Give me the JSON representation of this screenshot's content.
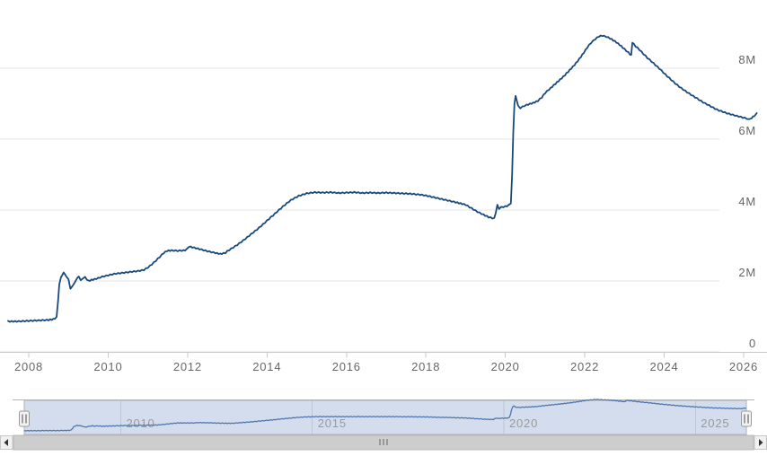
{
  "title": "",
  "colors": {
    "background": "#ffffff",
    "series": "#18497d",
    "navigator_series": "#4f77ad",
    "navigator_mask": "rgba(102,133,194,0.28)",
    "navigator_outline": "#b2b1b6",
    "navigator_grid": "#aab0bc",
    "grid": "#e6e6e6",
    "axis_line": "#c9c9c9",
    "tick": "#c9c9c9",
    "axis_label": "#666666",
    "navigator_label": "#999999",
    "scrollbar_thumb": "#cdcdcd",
    "scrollbar_thumb_border": "#b8b8b8",
    "scrollbar_track": "#f2f2f2",
    "scrollbar_button": "#f1f1f1",
    "scrollbar_button_border": "#c6c6c6",
    "scrollbar_arrow": "#333333",
    "scrollbar_grip": "#666666",
    "handle_fill": "#f2f2f2",
    "handle_border": "#999999",
    "handle_bar": "#4c4c4c"
  },
  "axes": {
    "y_labels": [
      {
        "text": "8M",
        "value": 8
      },
      {
        "text": "6M",
        "value": 6
      },
      {
        "text": "4M",
        "value": 4
      },
      {
        "text": "2M",
        "value": 2
      },
      {
        "text": "0",
        "value": 0
      }
    ],
    "x_labels": [
      {
        "text": "2008",
        "year": 2008
      },
      {
        "text": "2010",
        "year": 2010
      },
      {
        "text": "2012",
        "year": 2012
      },
      {
        "text": "2014",
        "year": 2014
      },
      {
        "text": "2016",
        "year": 2016
      },
      {
        "text": "2018",
        "year": 2018
      },
      {
        "text": "2020",
        "year": 2020
      },
      {
        "text": "2022",
        "year": 2022
      },
      {
        "text": "2024",
        "year": 2024
      },
      {
        "text": "2026",
        "year": 2026
      }
    ]
  },
  "navigator": {
    "labels": [
      {
        "text": "2010",
        "year": 2010
      },
      {
        "text": "2015",
        "year": 2015
      },
      {
        "text": "2020",
        "year": 2020
      },
      {
        "text": "2025",
        "year": 2025
      }
    ],
    "handle_count": 2
  },
  "scrollbar": {
    "left_arrow_icon": "left-triangle",
    "right_arrow_icon": "right-triangle",
    "grip_mark_count": 3
  },
  "chart_data": {
    "type": "line",
    "title": "",
    "xlabel": "",
    "ylabel": "",
    "legend": "none",
    "grid": "horizontal",
    "y_axis_side": "right",
    "y_unit": "M (values are millions, axis shows M suffix)",
    "x_unit": "year (decimal)",
    "x_range": [
      2007.48,
      2026.33
    ],
    "y_ticks_M": [
      0,
      2,
      4,
      6,
      8
    ],
    "navigator_shows_same_series": true,
    "series": [
      {
        "name": "main-series",
        "points_year_valueM": [
          [
            2007.48,
            0.86
          ],
          [
            2007.7,
            0.86
          ],
          [
            2007.9,
            0.87
          ],
          [
            2008.1,
            0.88
          ],
          [
            2008.3,
            0.89
          ],
          [
            2008.5,
            0.9
          ],
          [
            2008.62,
            0.92
          ],
          [
            2008.7,
            0.97
          ],
          [
            2008.74,
            1.45
          ],
          [
            2008.77,
            1.9
          ],
          [
            2008.81,
            2.1
          ],
          [
            2008.85,
            2.18
          ],
          [
            2008.88,
            2.24
          ],
          [
            2008.95,
            2.12
          ],
          [
            2009.0,
            2.04
          ],
          [
            2009.05,
            1.78
          ],
          [
            2009.1,
            1.84
          ],
          [
            2009.16,
            1.96
          ],
          [
            2009.22,
            2.08
          ],
          [
            2009.26,
            2.14
          ],
          [
            2009.31,
            2.02
          ],
          [
            2009.36,
            2.08
          ],
          [
            2009.42,
            2.1
          ],
          [
            2009.5,
            2.0
          ],
          [
            2009.58,
            2.03
          ],
          [
            2009.66,
            2.05
          ],
          [
            2009.75,
            2.08
          ],
          [
            2009.85,
            2.12
          ],
          [
            2010.0,
            2.16
          ],
          [
            2010.15,
            2.2
          ],
          [
            2010.3,
            2.22
          ],
          [
            2010.45,
            2.24
          ],
          [
            2010.6,
            2.26
          ],
          [
            2010.75,
            2.28
          ],
          [
            2010.9,
            2.31
          ],
          [
            2011.0,
            2.38
          ],
          [
            2011.1,
            2.47
          ],
          [
            2011.2,
            2.57
          ],
          [
            2011.3,
            2.68
          ],
          [
            2011.4,
            2.79
          ],
          [
            2011.48,
            2.85
          ],
          [
            2011.6,
            2.86
          ],
          [
            2011.75,
            2.85
          ],
          [
            2011.9,
            2.86
          ],
          [
            2011.97,
            2.88
          ],
          [
            2012.03,
            2.97
          ],
          [
            2012.12,
            2.95
          ],
          [
            2012.3,
            2.9
          ],
          [
            2012.5,
            2.84
          ],
          [
            2012.7,
            2.79
          ],
          [
            2012.82,
            2.76
          ],
          [
            2012.95,
            2.79
          ],
          [
            2013.0,
            2.84
          ],
          [
            2013.2,
            2.98
          ],
          [
            2013.4,
            3.14
          ],
          [
            2013.6,
            3.32
          ],
          [
            2013.8,
            3.5
          ],
          [
            2014.0,
            3.7
          ],
          [
            2014.2,
            3.9
          ],
          [
            2014.4,
            4.1
          ],
          [
            2014.6,
            4.28
          ],
          [
            2014.8,
            4.4
          ],
          [
            2015.0,
            4.47
          ],
          [
            2015.2,
            4.5
          ],
          [
            2015.4,
            4.49
          ],
          [
            2015.6,
            4.5
          ],
          [
            2015.8,
            4.48
          ],
          [
            2016.0,
            4.49
          ],
          [
            2016.2,
            4.5
          ],
          [
            2016.4,
            4.48
          ],
          [
            2016.6,
            4.49
          ],
          [
            2016.8,
            4.48
          ],
          [
            2017.0,
            4.49
          ],
          [
            2017.2,
            4.48
          ],
          [
            2017.4,
            4.47
          ],
          [
            2017.6,
            4.46
          ],
          [
            2017.8,
            4.44
          ],
          [
            2017.95,
            4.42
          ],
          [
            2018.15,
            4.37
          ],
          [
            2018.35,
            4.32
          ],
          [
            2018.55,
            4.27
          ],
          [
            2018.75,
            4.22
          ],
          [
            2019.0,
            4.15
          ],
          [
            2019.15,
            4.05
          ],
          [
            2019.3,
            3.95
          ],
          [
            2019.45,
            3.87
          ],
          [
            2019.58,
            3.8
          ],
          [
            2019.72,
            3.76
          ],
          [
            2019.76,
            3.92
          ],
          [
            2019.8,
            4.15
          ],
          [
            2019.84,
            4.03
          ],
          [
            2019.9,
            4.08
          ],
          [
            2020.0,
            4.1
          ],
          [
            2020.08,
            4.13
          ],
          [
            2020.14,
            4.2
          ],
          [
            2020.17,
            5.0
          ],
          [
            2020.2,
            6.2
          ],
          [
            2020.23,
            7.0
          ],
          [
            2020.26,
            7.22
          ],
          [
            2020.32,
            6.95
          ],
          [
            2020.38,
            6.88
          ],
          [
            2020.48,
            6.94
          ],
          [
            2020.58,
            6.98
          ],
          [
            2020.7,
            7.02
          ],
          [
            2020.82,
            7.08
          ],
          [
            2020.92,
            7.18
          ],
          [
            2021.0,
            7.3
          ],
          [
            2021.1,
            7.4
          ],
          [
            2021.22,
            7.52
          ],
          [
            2021.34,
            7.64
          ],
          [
            2021.46,
            7.76
          ],
          [
            2021.58,
            7.9
          ],
          [
            2021.7,
            8.04
          ],
          [
            2021.82,
            8.2
          ],
          [
            2021.94,
            8.38
          ],
          [
            2022.06,
            8.58
          ],
          [
            2022.16,
            8.72
          ],
          [
            2022.26,
            8.82
          ],
          [
            2022.36,
            8.9
          ],
          [
            2022.44,
            8.92
          ],
          [
            2022.54,
            8.89
          ],
          [
            2022.64,
            8.84
          ],
          [
            2022.76,
            8.76
          ],
          [
            2022.88,
            8.66
          ],
          [
            2023.0,
            8.54
          ],
          [
            2023.1,
            8.44
          ],
          [
            2023.17,
            8.36
          ],
          [
            2023.2,
            8.72
          ],
          [
            2023.28,
            8.62
          ],
          [
            2023.38,
            8.52
          ],
          [
            2023.48,
            8.4
          ],
          [
            2023.58,
            8.29
          ],
          [
            2023.68,
            8.19
          ],
          [
            2023.78,
            8.09
          ],
          [
            2023.88,
            7.99
          ],
          [
            2023.98,
            7.88
          ],
          [
            2024.08,
            7.77
          ],
          [
            2024.18,
            7.67
          ],
          [
            2024.28,
            7.57
          ],
          [
            2024.38,
            7.48
          ],
          [
            2024.48,
            7.4
          ],
          [
            2024.58,
            7.32
          ],
          [
            2024.68,
            7.25
          ],
          [
            2024.78,
            7.18
          ],
          [
            2024.88,
            7.11
          ],
          [
            2024.98,
            7.04
          ],
          [
            2025.08,
            6.98
          ],
          [
            2025.18,
            6.92
          ],
          [
            2025.28,
            6.86
          ],
          [
            2025.38,
            6.81
          ],
          [
            2025.48,
            6.77
          ],
          [
            2025.58,
            6.73
          ],
          [
            2025.68,
            6.7
          ],
          [
            2025.78,
            6.67
          ],
          [
            2025.88,
            6.64
          ],
          [
            2025.98,
            6.61
          ],
          [
            2026.08,
            6.58
          ],
          [
            2026.14,
            6.55
          ],
          [
            2026.2,
            6.6
          ],
          [
            2026.27,
            6.66
          ],
          [
            2026.33,
            6.72
          ]
        ]
      }
    ]
  }
}
